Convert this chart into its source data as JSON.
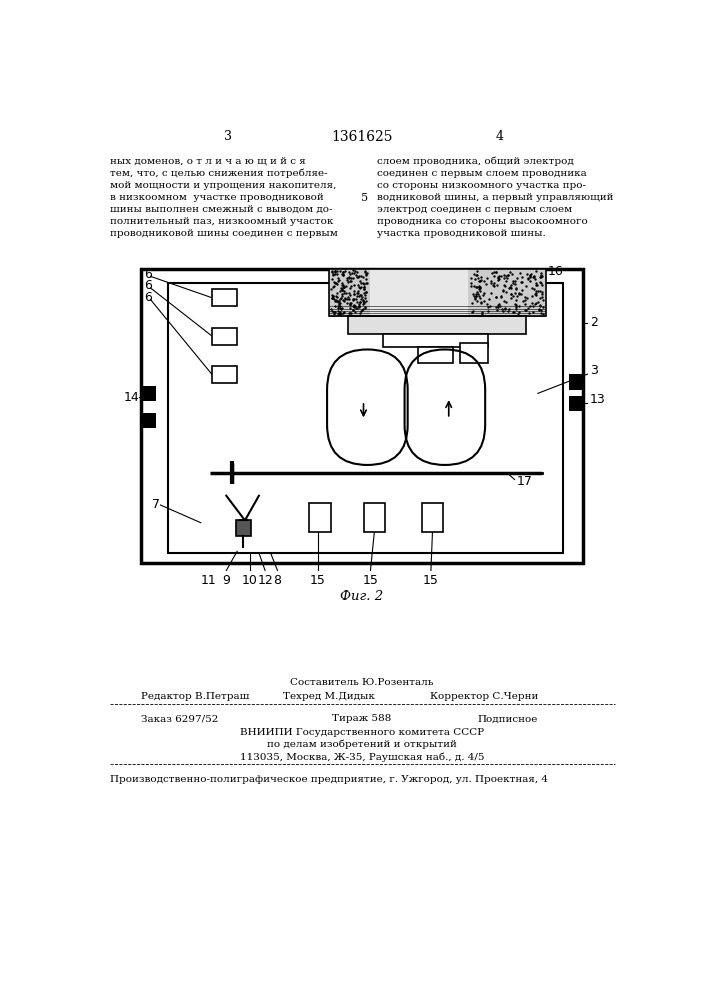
{
  "bg_color": "#ffffff",
  "text_color": "#000000",
  "page_header": {
    "left_num": "3",
    "center_title": "1361625",
    "right_num": "4"
  },
  "left_text": [
    "ных доменов, о т л и ч а ю щ и й с я",
    "тем, что, с целью снижения потребляе-",
    "мой мощности и упрощения накопителя,",
    "в низкоомном  участке проводниковой",
    "шины выполнен смежный с выводом до-",
    "полнительный паз, низкоомный участок",
    "проводниковой шины соединен с первым"
  ],
  "right_text": [
    "слоем проводника, общий электрод",
    "соединен с первым слоем проводника",
    "со стороны низкоомного участка про-",
    "водниковой шины, а первый управляющий",
    "электрод соединен с первым слоем",
    "проводника со стороны высокоомного",
    "участка проводниковой шины."
  ],
  "fig_label": "Фиг. 2"
}
